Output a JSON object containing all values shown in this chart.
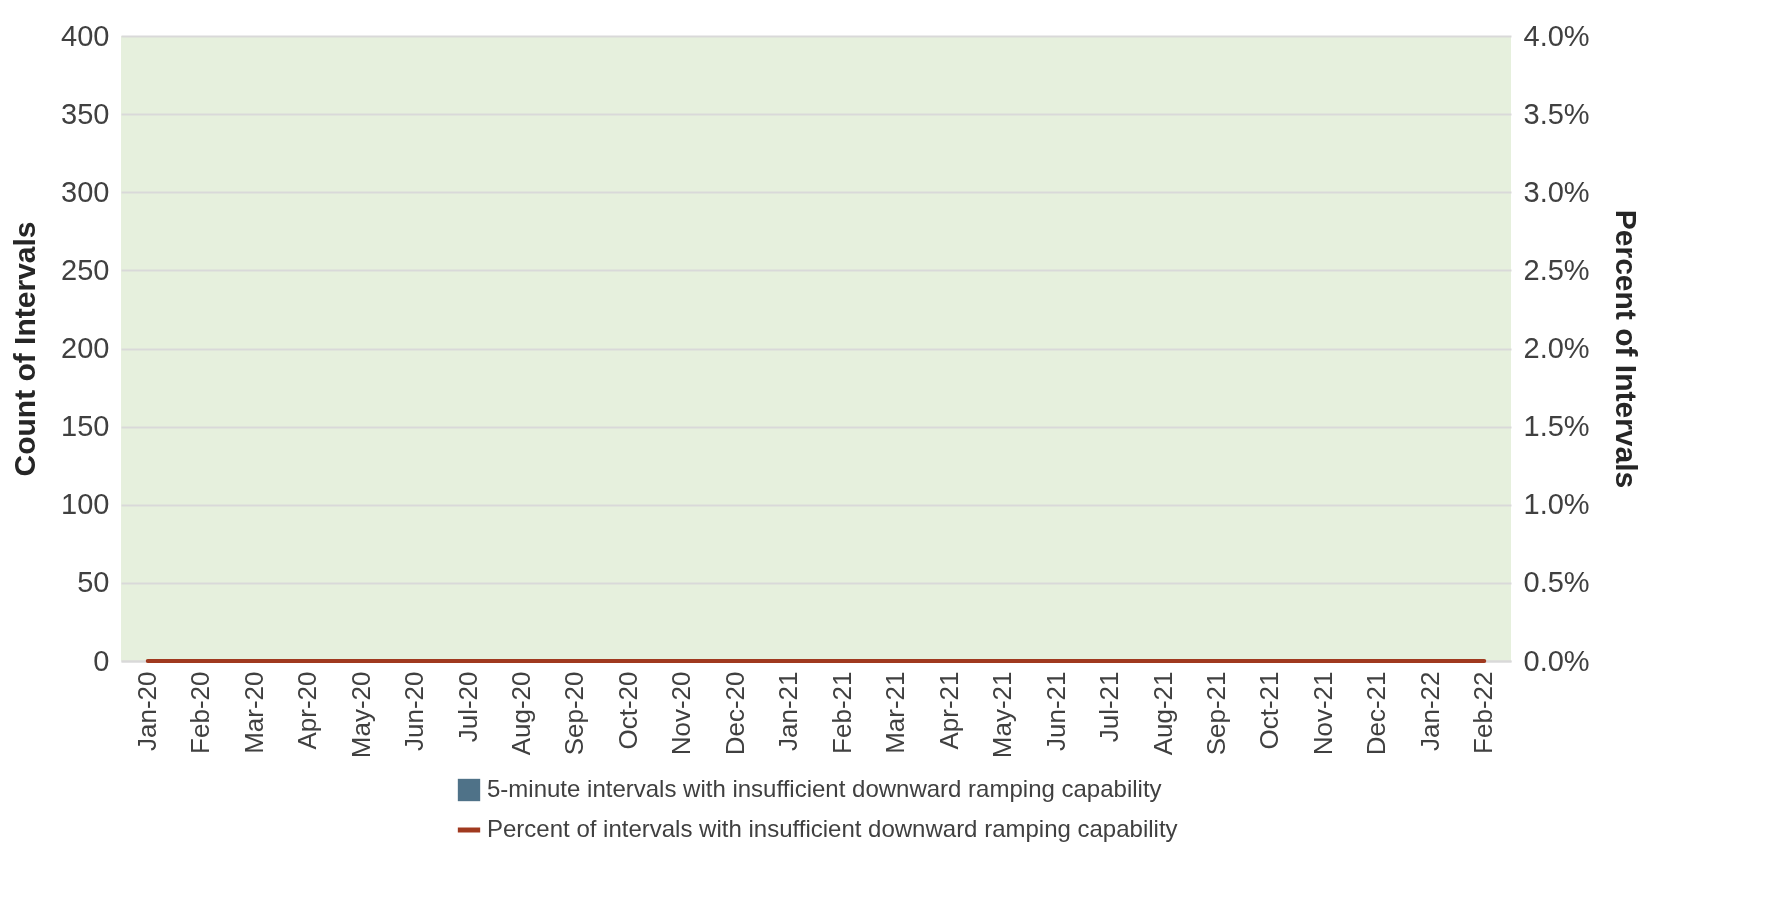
{
  "chart_data": {
    "type": "bar",
    "categories": [
      "Jan-20",
      "Feb-20",
      "Mar-20",
      "Apr-20",
      "May-20",
      "Jun-20",
      "Jul-20",
      "Aug-20",
      "Sep-20",
      "Oct-20",
      "Nov-20",
      "Dec-20",
      "Jan-21",
      "Feb-21",
      "Mar-21",
      "Apr-21",
      "May-21",
      "Jun-21",
      "Jul-21",
      "Aug-21",
      "Sep-21",
      "Oct-21",
      "Nov-21",
      "Dec-21",
      "Jan-22",
      "Feb-22"
    ],
    "ylabel": "Count of Intervals",
    "y2label": "Percent of Intervals",
    "ylim": [
      0,
      400
    ],
    "yticks": [
      0,
      50,
      100,
      150,
      200,
      250,
      300,
      350,
      400
    ],
    "y2lim": [
      0,
      4
    ],
    "y2ticks": [
      {
        "value": 0,
        "label": "0.0%"
      },
      {
        "value": 0.5,
        "label": "0.5%"
      },
      {
        "value": 1,
        "label": "1.0%"
      },
      {
        "value": 1.5,
        "label": "1.5%"
      },
      {
        "value": 2,
        "label": "2.0%"
      },
      {
        "value": 2.5,
        "label": "2.5%"
      },
      {
        "value": 3,
        "label": "3.0%"
      },
      {
        "value": 3.5,
        "label": "3.5%"
      },
      {
        "value": 4,
        "label": "4.0%"
      }
    ],
    "grid": "y",
    "legend": "bottom",
    "series": [
      {
        "name": "5-minute intervals with insufficient downward ramping capability",
        "color": "#4f7288",
        "values": [
          0,
          0,
          0,
          0,
          0,
          0,
          0,
          0,
          0,
          0,
          0,
          0,
          0,
          0,
          0,
          0,
          0,
          0,
          0,
          0,
          0,
          0,
          0,
          0,
          0,
          0
        ]
      },
      {
        "name": "Percent of intervals with insufficient downward ramping capability",
        "type": "line",
        "axis": "y2",
        "color": "#a0391f",
        "values": [
          0,
          0,
          0,
          0,
          0,
          0,
          0,
          0,
          0,
          0,
          0,
          0,
          0,
          0,
          0,
          0,
          0,
          0,
          0,
          0,
          0,
          0,
          0,
          0,
          0,
          0
        ]
      }
    ]
  }
}
